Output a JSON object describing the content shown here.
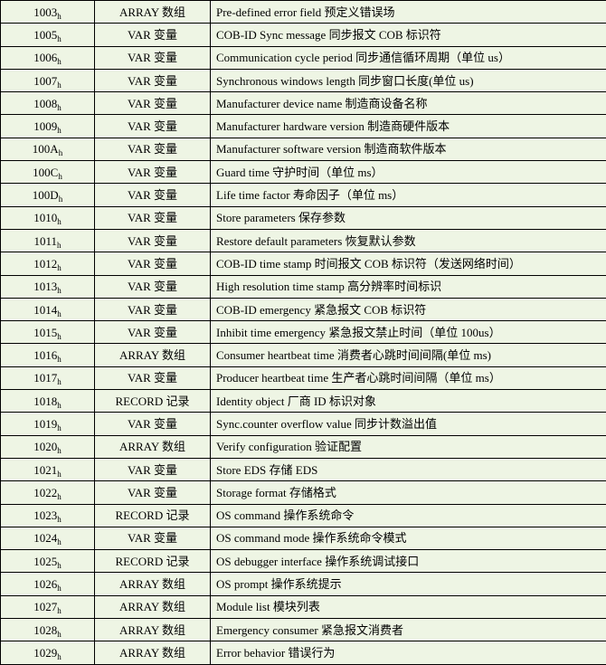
{
  "table": {
    "rows": [
      {
        "index": "1003",
        "type": "ARRAY 数组",
        "desc": "Pre-defined error field 预定义错误场"
      },
      {
        "index": "1005",
        "type": "VAR 变量",
        "desc": "COB-ID Sync message 同步报文 COB 标识符"
      },
      {
        "index": "1006",
        "type": "VAR 变量",
        "desc": "Communication cycle period 同步通信循环周期（单位 us）"
      },
      {
        "index": "1007",
        "type": "VAR 变量",
        "desc": "Synchronous windows length 同步窗口长度(单位 us)"
      },
      {
        "index": "1008",
        "type": "VAR 变量",
        "desc": "Manufacturer device name 制造商设备名称"
      },
      {
        "index": "1009",
        "type": "VAR 变量",
        "desc": "Manufacturer hardware version 制造商硬件版本"
      },
      {
        "index": "100A",
        "type": "VAR 变量",
        "desc": "Manufacturer software version 制造商软件版本"
      },
      {
        "index": "100C",
        "type": "VAR 变量",
        "desc": "Guard time 守护时间（单位 ms）"
      },
      {
        "index": "100D",
        "type": "VAR 变量",
        "desc": "Life time factor 寿命因子（单位 ms）"
      },
      {
        "index": "1010",
        "type": "VAR 变量",
        "desc": "Store parameters 保存参数"
      },
      {
        "index": "1011",
        "type": "VAR 变量",
        "desc": "Restore default parameters 恢复默认参数"
      },
      {
        "index": "1012",
        "type": "VAR 变量",
        "desc": "COB-ID time stamp 时间报文 COB 标识符（发送网络时间）"
      },
      {
        "index": "1013",
        "type": "VAR 变量",
        "desc": "High resolution time stamp 高分辨率时间标识"
      },
      {
        "index": "1014",
        "type": "VAR 变量",
        "desc": "COB-ID emergency 紧急报文 COB 标识符"
      },
      {
        "index": "1015",
        "type": "VAR 变量",
        "desc": "Inhibit time emergency 紧急报文禁止时间（单位 100us）"
      },
      {
        "index": "1016",
        "type": "ARRAY 数组",
        "desc": "Consumer heartbeat time 消费者心跳时间间隔(单位 ms)"
      },
      {
        "index": "1017",
        "type": "VAR 变量",
        "desc": "Producer heartbeat time 生产者心跳时间间隔（单位 ms）"
      },
      {
        "index": "1018",
        "type": "RECORD 记录",
        "desc": "Identity object 厂商 ID 标识对象"
      },
      {
        "index": "1019",
        "type": "VAR 变量",
        "desc": "Sync.counter overflow value 同步计数溢出值"
      },
      {
        "index": "1020",
        "type": "ARRAY 数组",
        "desc": "Verify configuration 验证配置"
      },
      {
        "index": "1021",
        "type": "VAR 变量",
        "desc": "Store EDS 存储 EDS"
      },
      {
        "index": "1022",
        "type": "VAR 变量",
        "desc": "Storage format 存储格式"
      },
      {
        "index": "1023",
        "type": "RECORD 记录",
        "desc": "OS command 操作系统命令"
      },
      {
        "index": "1024",
        "type": "VAR 变量",
        "desc": "OS command mode 操作系统命令模式"
      },
      {
        "index": "1025",
        "type": "RECORD 记录",
        "desc": "OS debugger interface 操作系统调试接口"
      },
      {
        "index": "1026",
        "type": "ARRAY 数组",
        "desc": "OS prompt 操作系统提示"
      },
      {
        "index": "1027",
        "type": "ARRAY 数组",
        "desc": "Module list 模块列表"
      },
      {
        "index": "1028",
        "type": "ARRAY 数组",
        "desc": "Emergency consumer 紧急报文消费者"
      },
      {
        "index": "1029",
        "type": "ARRAY 数组",
        "desc": "Error behavior 错误行为"
      }
    ],
    "hex_suffix": "h"
  }
}
